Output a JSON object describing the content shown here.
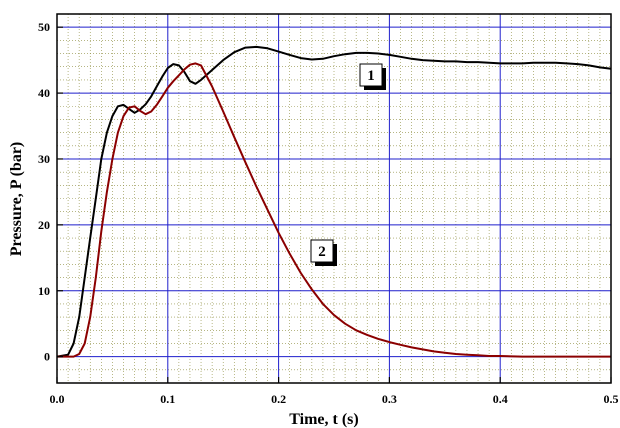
{
  "chart_data": {
    "type": "line",
    "title": "",
    "xlabel": "Time,   t (s)",
    "ylabel": "Pressure,   P (bar)",
    "xlim": [
      0.0,
      0.5
    ],
    "ylim": [
      -4,
      52
    ],
    "x_ticks": [
      "0.0",
      "0.1",
      "0.2",
      "0.3",
      "0.4",
      "0.5"
    ],
    "y_ticks": [
      "0",
      "10",
      "20",
      "30",
      "40",
      "50"
    ],
    "grid": true,
    "colors": {
      "series1": "#000000",
      "series2": "#8b0000",
      "major_grid": "#1f1fcc",
      "minor_grid": "#8a8a3a"
    },
    "series": [
      {
        "label": "1",
        "x": [
          0,
          0.01,
          0.015,
          0.02,
          0.025,
          0.03,
          0.035,
          0.04,
          0.045,
          0.05,
          0.055,
          0.06,
          0.065,
          0.07,
          0.075,
          0.08,
          0.085,
          0.09,
          0.095,
          0.1,
          0.105,
          0.11,
          0.115,
          0.12,
          0.125,
          0.13,
          0.14,
          0.15,
          0.16,
          0.17,
          0.18,
          0.19,
          0.2,
          0.21,
          0.22,
          0.23,
          0.24,
          0.25,
          0.26,
          0.27,
          0.28,
          0.29,
          0.3,
          0.31,
          0.32,
          0.33,
          0.34,
          0.35,
          0.36,
          0.37,
          0.38,
          0.39,
          0.4,
          0.41,
          0.42,
          0.43,
          0.44,
          0.45,
          0.46,
          0.47,
          0.48,
          0.49,
          0.5
        ],
        "y": [
          0,
          0.3,
          2,
          6,
          12,
          18,
          24,
          30,
          34,
          36.5,
          38,
          38.2,
          37.6,
          37,
          37.5,
          38.3,
          39.5,
          41,
          42.5,
          43.8,
          44.4,
          44.2,
          43.2,
          41.8,
          41.4,
          42,
          43.5,
          45,
          46.2,
          46.9,
          47,
          46.8,
          46.3,
          45.8,
          45.3,
          45.1,
          45.2,
          45.6,
          45.9,
          46.1,
          46.1,
          46,
          45.8,
          45.5,
          45.2,
          45,
          44.9,
          44.8,
          44.8,
          44.7,
          44.7,
          44.6,
          44.5,
          44.5,
          44.5,
          44.6,
          44.6,
          44.6,
          44.5,
          44.4,
          44.2,
          43.9,
          43.7
        ]
      },
      {
        "label": "2",
        "x": [
          0,
          0.015,
          0.02,
          0.025,
          0.03,
          0.035,
          0.04,
          0.045,
          0.05,
          0.055,
          0.06,
          0.065,
          0.07,
          0.075,
          0.08,
          0.085,
          0.09,
          0.095,
          0.1,
          0.105,
          0.11,
          0.115,
          0.12,
          0.125,
          0.13,
          0.14,
          0.15,
          0.16,
          0.17,
          0.18,
          0.19,
          0.2,
          0.21,
          0.22,
          0.23,
          0.24,
          0.25,
          0.26,
          0.27,
          0.28,
          0.29,
          0.3,
          0.31,
          0.32,
          0.33,
          0.34,
          0.35,
          0.36,
          0.37,
          0.38,
          0.39,
          0.4,
          0.42,
          0.44,
          0.46,
          0.48,
          0.5
        ],
        "y": [
          0,
          0,
          0.4,
          2,
          6,
          12,
          19,
          25,
          30,
          34,
          36.5,
          37.8,
          38,
          37.3,
          36.8,
          37.2,
          38.2,
          39.5,
          40.8,
          41.8,
          42.7,
          43.6,
          44.3,
          44.5,
          44.2,
          41,
          37.2,
          33.3,
          29.5,
          25.8,
          22.3,
          18.8,
          15.6,
          12.7,
          10.2,
          8,
          6.3,
          5,
          4,
          3.3,
          2.7,
          2.2,
          1.8,
          1.4,
          1.1,
          0.8,
          0.6,
          0.4,
          0.3,
          0.2,
          0.1,
          0.1,
          0,
          0,
          0,
          0,
          0
        ]
      }
    ]
  }
}
